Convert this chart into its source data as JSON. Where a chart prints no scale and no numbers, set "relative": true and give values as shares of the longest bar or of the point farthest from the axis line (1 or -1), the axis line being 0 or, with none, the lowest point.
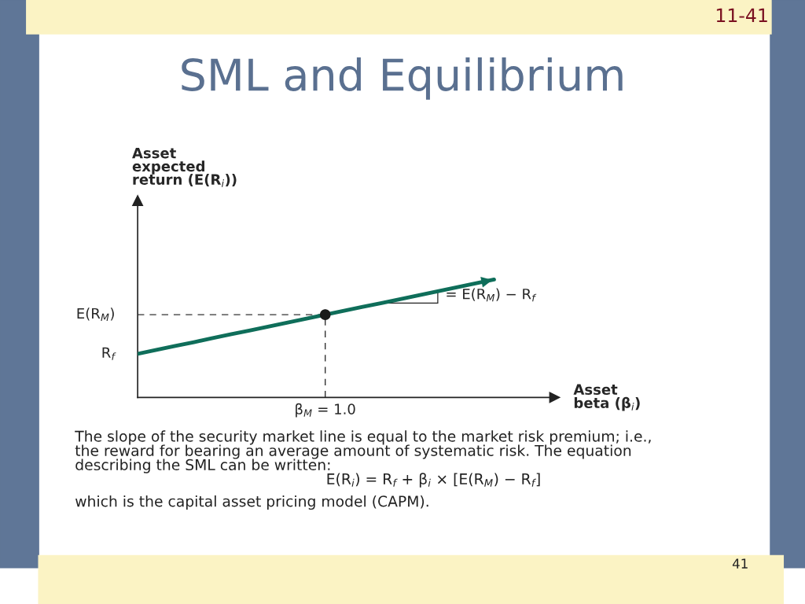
{
  "chart_data": {
    "type": "line",
    "title": "SML and Equilibrium",
    "xlabel": "Asset\nbeta (β$_{i}$)",
    "relative": true,
    "categories": [
      null,
      null,
      null,
      null,
      null,
      null,
      null,
      null,
      null,
      null,
      null,
      null,
      null,
      null,
      null,
      null,
      null,
      null,
      null,
      null
    ],
    "series": [
      {
        "color": "#0f6e5a",
        "values": [
          0.37,
          0.403,
          0.436,
          0.469,
          0.503,
          0.536,
          0.569,
          0.602,
          0.635,
          0.668,
          0.702,
          0.735,
          0.768,
          0.801,
          0.834,
          0.867,
          0.901,
          0.934,
          0.967,
          1.0
        ],
        "line_style": "solid"
      }
    ],
    "ref_lines": [
      {
        "axis": "y",
        "value": 0.702,
        "label": "E(R$_{M}$)",
        "line_style": "dashed",
        "color": "#333333"
      }
    ],
    "annotations": [
      "R$_{f}$",
      "β$_{M}$ = 1.0",
      "Asset\nexpected\nreturn (E(R$_{i}$))",
      "= E(R$_{M}$) − R$_{f}$",
      "The slope of the security market line is equal to the market risk premium; i.e.,\nthe reward for bearing an average amount of systematic risk. The equation\ndescribing the SML can be written:",
      "E(R$_{i}$) = R$_{f}$ + β$_{i}$ × [E(R$_{M}$) − R$_{f}$]",
      "which is the capital asset pricing model (CAPM).",
      "11-41",
      "41"
    ]
  }
}
